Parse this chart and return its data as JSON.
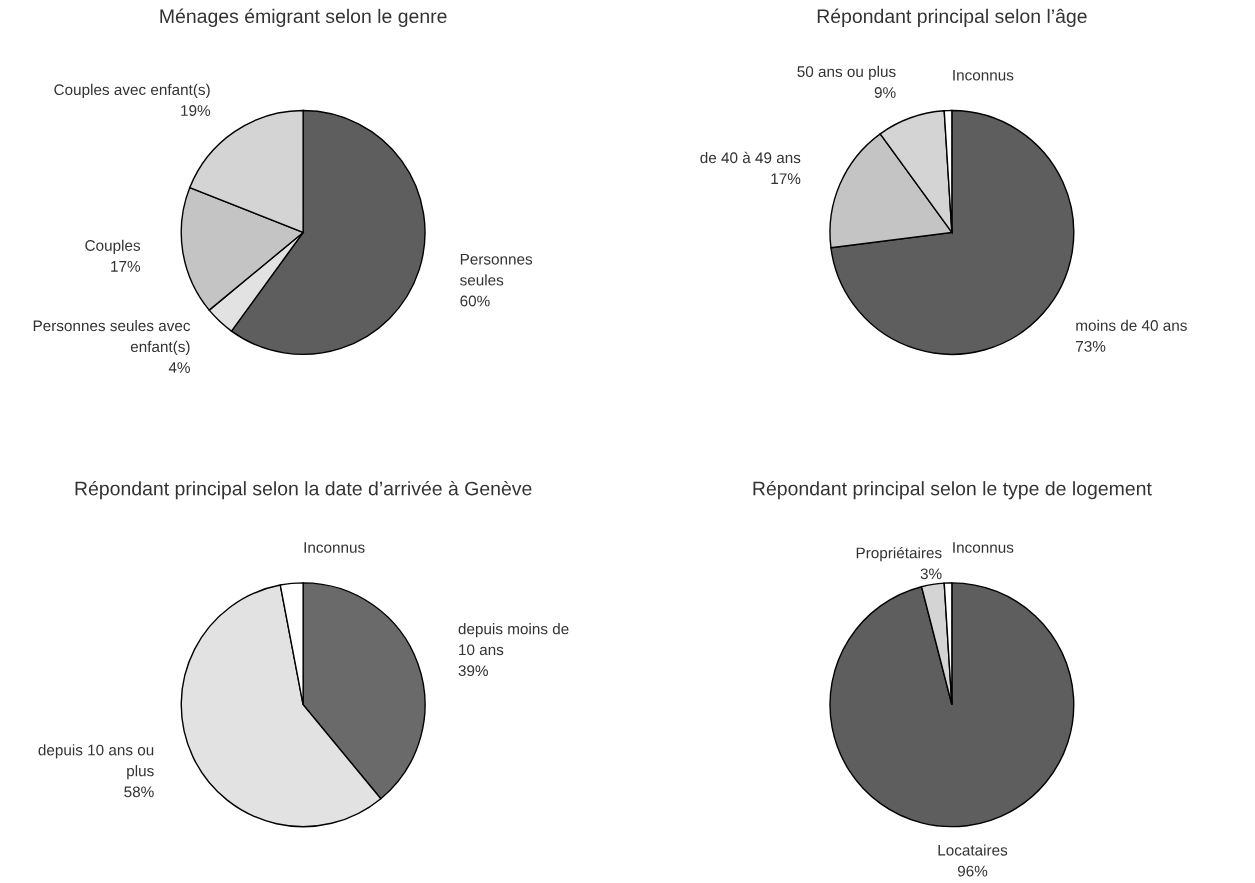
{
  "chart_data": [
    {
      "type": "pie",
      "title": "Ménages émigrant selon le genre",
      "categories": [
        "Personnes\nseules",
        "Personnes seules avec\nenfant(s)",
        "Couples",
        "Couples avec enfant(s)"
      ],
      "values": [
        60,
        4,
        17,
        19
      ],
      "value_labels": [
        "60%",
        "4%",
        "17%",
        "19%"
      ],
      "colors": [
        "#5e5e5e",
        "#e2e2e2",
        "#c4c4c4",
        "#d4d4d4"
      ]
    },
    {
      "type": "pie",
      "title": "Répondant principal selon l’âge",
      "categories": [
        "moins de 40 ans",
        "de 40 à 49 ans",
        "50 ans ou plus",
        "Inconnus"
      ],
      "values": [
        73,
        17,
        9,
        1
      ],
      "value_labels": [
        "73%",
        "17%",
        "9%",
        null
      ],
      "colors": [
        "#5e5e5e",
        "#c4c4c4",
        "#d4d4d4",
        "#ffffff"
      ]
    },
    {
      "type": "pie",
      "title": "Répondant principal selon la date d’arrivée à Genève",
      "categories": [
        "depuis moins de\n10 ans",
        "depuis 10 ans ou\nplus",
        "Inconnus"
      ],
      "values": [
        39,
        58,
        3
      ],
      "value_labels": [
        "39%",
        "58%",
        null
      ],
      "colors": [
        "#6a6a6a",
        "#e2e2e2",
        "#ffffff"
      ]
    },
    {
      "type": "pie",
      "title": "Répondant principal selon le type de logement",
      "categories": [
        "Locataires",
        "Propriétaires",
        "Inconnus"
      ],
      "values": [
        96,
        3,
        1
      ],
      "value_labels": [
        "96%",
        "3%",
        null
      ],
      "colors": [
        "#5e5e5e",
        "#d4d4d4",
        "#ffffff"
      ]
    }
  ]
}
